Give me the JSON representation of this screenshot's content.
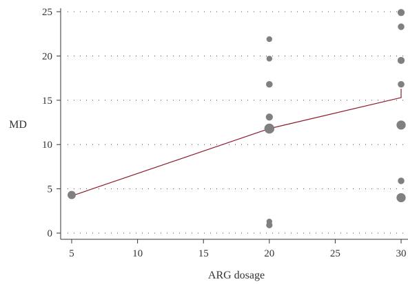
{
  "chart_data": {
    "type": "scatter",
    "xlabel": "ARG dosage",
    "ylabel": "MD",
    "xlim": [
      5,
      30
    ],
    "ylim": [
      0,
      25
    ],
    "xticks": [
      5,
      10,
      15,
      20,
      25,
      30
    ],
    "yticks": [
      0,
      5,
      10,
      15,
      20,
      25
    ],
    "grid": "horizontal dotted",
    "points": [
      {
        "x": 5,
        "y": 4.3,
        "w": 2
      },
      {
        "x": 20,
        "y": 21.9,
        "w": 1
      },
      {
        "x": 20,
        "y": 19.7,
        "w": 1
      },
      {
        "x": 20,
        "y": 16.8,
        "w": 1.3
      },
      {
        "x": 20,
        "y": 13.1,
        "w": 1.5
      },
      {
        "x": 20,
        "y": 11.8,
        "w": 3
      },
      {
        "x": 20,
        "y": 1.3,
        "w": 1
      },
      {
        "x": 20,
        "y": 0.9,
        "w": 1.2
      },
      {
        "x": 30,
        "y": 24.9,
        "w": 1.5
      },
      {
        "x": 30,
        "y": 23.3,
        "w": 1.3
      },
      {
        "x": 30,
        "y": 19.5,
        "w": 1.5
      },
      {
        "x": 30,
        "y": 16.8,
        "w": 1.3
      },
      {
        "x": 30,
        "y": 12.2,
        "w": 2.5
      },
      {
        "x": 30,
        "y": 5.9,
        "w": 1.3
      },
      {
        "x": 30,
        "y": 4.0,
        "w": 2.5
      }
    ],
    "fit_line": {
      "x": [
        5,
        20,
        30,
        30
      ],
      "y": [
        4.2,
        11.8,
        15.3,
        16.3
      ],
      "color": "#8b1a2b"
    },
    "colors": {
      "points": "#808080",
      "axis": "#333333",
      "grid": "#444444"
    }
  }
}
